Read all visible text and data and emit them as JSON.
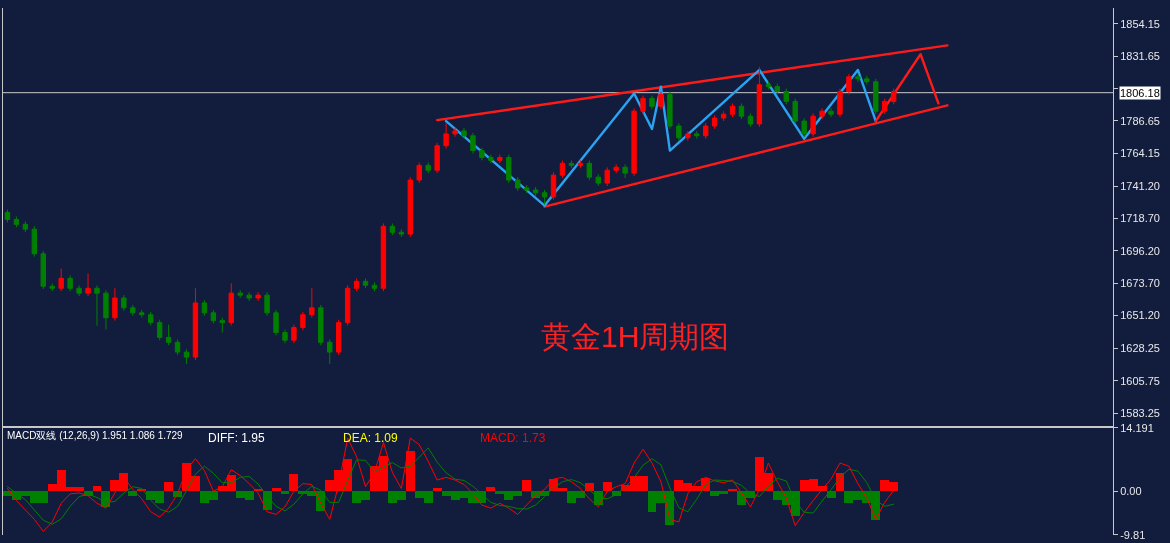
{
  "chart_data": [
    {
      "type": "candlestick",
      "title": "黄金1H周期图",
      "categories": [
        null,
        null,
        null,
        null,
        null,
        null,
        null,
        null,
        null,
        null,
        null,
        null,
        null,
        null,
        null,
        null,
        null,
        null,
        null,
        null,
        null,
        null,
        null,
        null,
        null,
        null,
        null,
        null,
        null,
        null,
        null,
        null,
        null,
        null,
        null,
        null,
        null,
        null,
        null,
        null,
        null,
        null,
        null,
        null,
        null,
        null,
        null,
        null,
        null,
        null,
        null,
        null,
        null,
        null,
        null,
        null,
        null,
        null,
        null,
        null,
        null,
        null,
        null,
        null,
        null,
        null,
        null,
        null,
        null,
        null,
        null,
        null,
        null,
        null,
        null,
        null,
        null,
        null,
        null,
        null,
        null,
        null,
        null,
        null,
        null,
        null,
        null,
        null,
        null,
        null,
        null,
        null,
        null,
        null,
        null,
        null,
        null,
        null,
        null,
        null,
        null,
        null,
        null,
        null,
        null,
        null,
        null,
        null,
        null,
        null,
        null,
        null,
        null,
        null,
        null,
        null,
        null,
        null,
        null,
        null,
        null,
        null,
        null,
        null
      ],
      "ohlc": [
        [
          1722.8,
          1724.8,
          1716.0,
          1718.0
        ],
        [
          1718.0,
          1720.0,
          1712.6,
          1714.6
        ],
        [
          1714.6,
          1716.6,
          1709.2,
          1711.2
        ],
        [
          1711.2,
          1713.2,
          1692.1,
          1694.1
        ],
        [
          1694.1,
          1696.1,
          1669.5,
          1671.5
        ],
        [
          1671.5,
          1673.5,
          1668.1,
          1670.1
        ],
        [
          1670.1,
          1683.8,
          1668.1,
          1677.0
        ],
        [
          1677.0,
          1679.0,
          1668.1,
          1670.1
        ],
        [
          1670.1,
          1672.1,
          1664.7,
          1666.7
        ],
        [
          1666.7,
          1680.4,
          1664.7,
          1670.1
        ],
        [
          1670.1,
          1672.1,
          1644.1,
          1666.7
        ],
        [
          1666.7,
          1668.7,
          1641.4,
          1649.6
        ],
        [
          1649.6,
          1670.1,
          1647.6,
          1663.3
        ],
        [
          1663.3,
          1665.3,
          1654.5,
          1656.5
        ],
        [
          1656.5,
          1658.5,
          1651.0,
          1653.0
        ],
        [
          1653.0,
          1655.0,
          1649.7,
          1651.7
        ],
        [
          1651.7,
          1653.7,
          1644.2,
          1646.2
        ],
        [
          1646.2,
          1648.2,
          1633.9,
          1635.9
        ],
        [
          1635.9,
          1644.8,
          1630.5,
          1632.5
        ],
        [
          1632.5,
          1634.5,
          1623.7,
          1625.7
        ],
        [
          1625.7,
          1627.7,
          1617.5,
          1622.2
        ],
        [
          1622.2,
          1670.1,
          1620.2,
          1659.9
        ],
        [
          1659.9,
          1661.9,
          1651.0,
          1653.0
        ],
        [
          1653.0,
          1655.0,
          1645.6,
          1647.6
        ],
        [
          1647.6,
          1649.6,
          1639.3,
          1646.2
        ],
        [
          1646.2,
          1673.6,
          1644.2,
          1666.7
        ],
        [
          1666.7,
          1668.7,
          1663.3,
          1665.3
        ],
        [
          1665.3,
          1667.3,
          1661.3,
          1663.3
        ],
        [
          1663.3,
          1667.3,
          1661.3,
          1665.3
        ],
        [
          1665.3,
          1667.3,
          1651.0,
          1653.0
        ],
        [
          1653.0,
          1655.0,
          1637.3,
          1639.3
        ],
        [
          1639.3,
          1641.3,
          1631.9,
          1633.9
        ],
        [
          1633.9,
          1644.8,
          1631.9,
          1642.8
        ],
        [
          1642.8,
          1653.7,
          1640.8,
          1651.7
        ],
        [
          1651.7,
          1670.1,
          1649.7,
          1656.5
        ],
        [
          1656.5,
          1658.5,
          1630.5,
          1632.5
        ],
        [
          1632.5,
          1634.5,
          1617.5,
          1625.7
        ],
        [
          1625.7,
          1648.2,
          1623.7,
          1646.2
        ],
        [
          1646.2,
          1672.1,
          1644.2,
          1670.1
        ],
        [
          1670.1,
          1676.9,
          1668.1,
          1674.9
        ],
        [
          1674.9,
          1676.9,
          1670.2,
          1672.2
        ],
        [
          1672.2,
          1674.2,
          1668.1,
          1670.1
        ],
        [
          1670.1,
          1715.2,
          1668.1,
          1713.2
        ],
        [
          1713.2,
          1715.2,
          1707.1,
          1709.1
        ],
        [
          1709.1,
          1711.1,
          1705.8,
          1707.8
        ],
        [
          1707.8,
          1747.4,
          1705.8,
          1745.4
        ],
        [
          1745.4,
          1757.6,
          1743.4,
          1755.6
        ],
        [
          1755.6,
          1757.6,
          1750.2,
          1752.2
        ],
        [
          1752.2,
          1771.3,
          1750.2,
          1769.3
        ],
        [
          1769.3,
          1785.1,
          1767.3,
          1777.5
        ],
        [
          1777.5,
          1781.6,
          1775.5,
          1779.6
        ],
        [
          1779.6,
          1781.6,
          1774.2,
          1776.2
        ],
        [
          1776.2,
          1778.2,
          1763.9,
          1765.9
        ],
        [
          1765.9,
          1767.9,
          1759.1,
          1761.1
        ],
        [
          1761.1,
          1763.1,
          1757.1,
          1759.1
        ],
        [
          1759.1,
          1763.1,
          1757.1,
          1761.1
        ],
        [
          1761.1,
          1763.1,
          1743.4,
          1745.4
        ],
        [
          1745.4,
          1747.4,
          1737.9,
          1739.9
        ],
        [
          1739.9,
          1741.9,
          1736.5,
          1738.5
        ],
        [
          1738.5,
          1740.5,
          1734.5,
          1736.5
        ],
        [
          1736.5,
          1738.5,
          1728.3,
          1733.7
        ],
        [
          1733.7,
          1750.8,
          1731.7,
          1748.8
        ],
        [
          1748.8,
          1759.0,
          1746.8,
          1757.0
        ],
        [
          1757.0,
          1759.0,
          1753.6,
          1755.6
        ],
        [
          1755.6,
          1759.0,
          1753.6,
          1757.0
        ],
        [
          1757.0,
          1759.0,
          1745.4,
          1747.4
        ],
        [
          1747.4,
          1749.4,
          1741.3,
          1743.3
        ],
        [
          1743.3,
          1754.2,
          1741.3,
          1752.2
        ],
        [
          1752.2,
          1756.3,
          1750.2,
          1754.3
        ],
        [
          1754.3,
          1756.3,
          1746.8,
          1750.2
        ],
        [
          1750.2,
          1795.3,
          1748.2,
          1793.3
        ],
        [
          1793.3,
          1804.2,
          1791.3,
          1802.2
        ],
        [
          1802.2,
          1804.2,
          1794.7,
          1796.7
        ],
        [
          1796.7,
          1806.9,
          1794.7,
          1804.9
        ],
        [
          1804.9,
          1806.9,
          1781.0,
          1783.0
        ],
        [
          1783.0,
          1785.0,
          1772.8,
          1774.8
        ],
        [
          1774.8,
          1779.5,
          1772.8,
          1777.5
        ],
        [
          1777.5,
          1779.5,
          1774.2,
          1776.2
        ],
        [
          1776.2,
          1785.0,
          1774.2,
          1783.0
        ],
        [
          1783.0,
          1790.5,
          1781.0,
          1788.5
        ],
        [
          1788.5,
          1793.2,
          1786.5,
          1791.2
        ],
        [
          1791.2,
          1798.7,
          1789.2,
          1796.7
        ],
        [
          1796.7,
          1798.7,
          1787.8,
          1789.8
        ],
        [
          1789.8,
          1791.8,
          1782.4,
          1784.4
        ],
        [
          1784.4,
          1824.1,
          1782.4,
          1811.7
        ],
        [
          1811.7,
          1813.7,
          1808.4,
          1810.4
        ],
        [
          1810.4,
          1812.4,
          1805.0,
          1807.0
        ],
        [
          1807.0,
          1809.0,
          1798.1,
          1800.1
        ],
        [
          1800.1,
          1802.1,
          1784.4,
          1786.4
        ],
        [
          1786.4,
          1788.4,
          1775.5,
          1777.5
        ],
        [
          1777.5,
          1791.8,
          1775.5,
          1789.8
        ],
        [
          1789.8,
          1795.3,
          1787.8,
          1793.3
        ],
        [
          1793.3,
          1795.3,
          1789.2,
          1791.2
        ],
        [
          1791.2,
          1809.0,
          1789.2,
          1807.0
        ],
        [
          1807.0,
          1819.2,
          1805.0,
          1817.2
        ],
        [
          1817.2,
          1819.2,
          1813.8,
          1815.8
        ],
        [
          1815.8,
          1817.8,
          1811.8,
          1813.8
        ],
        [
          1813.8,
          1815.8,
          1791.3,
          1793.3
        ],
        [
          1793.3,
          1802.1,
          1791.3,
          1800.1
        ],
        [
          1800.1,
          1809.0,
          1798.1,
          1807.0
        ],
        null,
        null,
        null,
        null,
        null,
        null,
        null,
        null,
        null,
        null,
        null,
        null,
        null,
        null,
        null,
        null,
        null,
        null,
        null,
        null,
        null,
        null,
        null,
        null
      ],
      "colors": [
        "#008000",
        "#008000",
        "#008000",
        "#008000",
        "#008000",
        "#008000",
        "#ff0000",
        "#008000",
        "#008000",
        "#ff0000",
        "#008000",
        "#008000",
        "#ff0000",
        "#008000",
        "#008000",
        "#008000",
        "#008000",
        "#008000",
        "#008000",
        "#008000",
        "#008000",
        "#ff0000",
        "#008000",
        "#008000",
        "#008000",
        "#ff0000",
        "#008000",
        "#008000",
        "#ff0000",
        "#008000",
        "#008000",
        "#008000",
        "#ff0000",
        "#ff0000",
        "#ff0000",
        "#008000",
        "#008000",
        "#ff0000",
        "#ff0000",
        "#ff0000",
        "#008000",
        "#008000",
        "#ff0000",
        "#008000",
        "#008000",
        "#ff0000",
        "#ff0000",
        "#008000",
        "#ff0000",
        "#ff0000",
        "#ff0000",
        "#008000",
        "#008000",
        "#008000",
        "#008000",
        "#ff0000",
        "#008000",
        "#008000",
        "#008000",
        "#008000",
        "#008000",
        "#ff0000",
        "#ff0000",
        "#008000",
        "#ff0000",
        "#008000",
        "#008000",
        "#ff0000",
        "#ff0000",
        "#008000",
        "#ff0000",
        "#ff0000",
        "#008000",
        "#ff0000",
        "#008000",
        "#008000",
        "#ff0000",
        "#008000",
        "#ff0000",
        "#ff0000",
        "#ff0000",
        "#ff0000",
        "#008000",
        "#008000",
        "#ff0000",
        "#008000",
        "#008000",
        "#008000",
        "#008000",
        "#008000",
        "#ff0000",
        "#ff0000",
        "#008000",
        "#ff0000",
        "#ff0000",
        "#008000",
        "#008000",
        "#008000",
        "#ff0000",
        "#ff0000",
        null,
        null,
        null,
        null,
        null,
        null,
        null,
        null,
        null,
        null,
        null,
        null,
        null,
        null,
        null,
        null,
        null,
        null,
        null,
        null,
        null,
        null,
        null,
        null
      ],
      "series": [
        {
          "type": "line",
          "color": "#ff1a1a",
          "values": [
            null,
            null,
            null,
            null,
            null,
            null,
            null,
            null,
            null,
            null,
            null,
            null,
            null,
            null,
            null,
            null,
            null,
            null,
            null,
            null,
            null,
            null,
            null,
            null,
            null,
            null,
            null,
            null,
            null,
            null,
            null,
            null,
            null,
            null,
            null,
            null,
            null,
            null,
            null,
            null,
            null,
            null,
            null,
            null,
            null,
            null,
            null,
            null,
            1787.1,
            null,
            null,
            null,
            null,
            null,
            null,
            null,
            null,
            null,
            null,
            null,
            null,
            null,
            null,
            null,
            null,
            null,
            null,
            null,
            null,
            null,
            null,
            null,
            null,
            null,
            null,
            null,
            null,
            null,
            null,
            null,
            null,
            null,
            null,
            null,
            null,
            null,
            null,
            null,
            null,
            null,
            null,
            null,
            null,
            null,
            null,
            null,
            null,
            null,
            null,
            null,
            null,
            null,
            null,
            null,
            null,
            1839.1,
            null,
            null,
            null,
            null,
            null,
            null,
            null,
            null,
            null,
            null,
            null,
            null,
            null,
            null,
            null,
            null,
            null,
            null
          ]
        },
        {
          "type": "line",
          "color": "#ff1a1a",
          "values": [
            null,
            null,
            null,
            null,
            null,
            null,
            null,
            null,
            null,
            null,
            null,
            null,
            null,
            null,
            null,
            null,
            null,
            null,
            null,
            null,
            null,
            null,
            null,
            null,
            null,
            null,
            null,
            null,
            null,
            null,
            null,
            null,
            null,
            null,
            null,
            null,
            null,
            null,
            null,
            null,
            null,
            null,
            null,
            null,
            null,
            null,
            null,
            null,
            null,
            null,
            null,
            null,
            null,
            null,
            null,
            null,
            null,
            null,
            null,
            null,
            1726.9,
            null,
            null,
            null,
            null,
            null,
            null,
            null,
            null,
            null,
            null,
            null,
            null,
            null,
            null,
            null,
            null,
            null,
            null,
            null,
            null,
            null,
            null,
            null,
            null,
            null,
            null,
            null,
            null,
            null,
            null,
            null,
            null,
            null,
            null,
            null,
            null,
            null,
            null,
            null,
            null,
            null,
            null,
            null,
            null,
            1797.4,
            null,
            null,
            null,
            null,
            null,
            null,
            null,
            null,
            null,
            null,
            null,
            null,
            null,
            null,
            null,
            null,
            null,
            null
          ]
        },
        {
          "type": "line",
          "color": "#2aa4f2",
          "values": [
            null,
            null,
            null,
            null,
            null,
            null,
            null,
            null,
            null,
            null,
            null,
            null,
            null,
            null,
            null,
            null,
            null,
            null,
            null,
            null,
            null,
            null,
            null,
            null,
            null,
            null,
            null,
            null,
            null,
            null,
            null,
            null,
            null,
            null,
            null,
            null,
            null,
            null,
            null,
            null,
            null,
            null,
            null,
            null,
            null,
            null,
            null,
            null,
            null,
            1786.4,
            null,
            null,
            null,
            null,
            null,
            null,
            null,
            null,
            null,
            null,
            1727.6,
            null,
            null,
            null,
            null,
            null,
            null,
            null,
            null,
            null,
            1805.6,
            null,
            1780.9,
            1810.4,
            1765.9,
            null,
            null,
            null,
            null,
            null,
            null,
            null,
            null,
            null,
            1822.0,
            null,
            null,
            null,
            null,
            1774.1,
            null,
            null,
            null,
            null,
            null,
            1822.0,
            null,
            1786.4,
            null,
            null,
            null,
            null,
            null,
            null,
            null,
            null,
            null,
            null,
            null,
            null,
            null,
            null,
            null,
            null,
            null,
            null,
            null,
            null,
            null,
            null,
            null,
            null,
            null,
            null
          ]
        },
        {
          "type": "line",
          "color": "#ff1a1a",
          "values": [
            null,
            null,
            null,
            null,
            null,
            null,
            null,
            null,
            null,
            null,
            null,
            null,
            null,
            null,
            null,
            null,
            null,
            null,
            null,
            null,
            null,
            null,
            null,
            null,
            null,
            null,
            null,
            null,
            null,
            null,
            null,
            null,
            null,
            null,
            null,
            null,
            null,
            null,
            null,
            null,
            null,
            null,
            null,
            null,
            null,
            null,
            null,
            null,
            null,
            null,
            null,
            null,
            null,
            null,
            null,
            null,
            null,
            null,
            null,
            null,
            null,
            null,
            null,
            null,
            null,
            null,
            null,
            null,
            null,
            null,
            null,
            null,
            null,
            null,
            null,
            null,
            null,
            null,
            null,
            null,
            null,
            null,
            null,
            null,
            null,
            null,
            null,
            null,
            null,
            null,
            null,
            null,
            null,
            null,
            null,
            null,
            null,
            1786.4,
            null,
            null,
            null,
            null,
            1832.9,
            null,
            1798.7,
            null,
            null,
            null,
            null,
            null,
            null,
            null,
            null,
            null,
            null,
            null,
            null,
            null,
            null,
            null,
            null,
            null,
            null,
            null
          ]
        }
      ],
      "ylim": [
        1574.4,
        1865.1
      ],
      "yticks": [
        1854.15,
        1831.65,
        {
          "value": 1809.15,
          "label": null
        },
        1786.65,
        1764.15,
        {
          "value": 1741.2,
          "label": "1741.20"
        },
        {
          "value": 1718.7,
          "label": "1718.70"
        },
        {
          "value": 1696.2,
          "label": "1696.20"
        },
        {
          "value": 1673.7,
          "label": "1673.70"
        },
        {
          "value": 1651.2,
          "label": "1651.20"
        },
        1628.25,
        1605.75,
        1583.25
      ],
      "ref_lines": [
        {
          "axis": "y",
          "value": 1806.18,
          "label": "1806.18",
          "color": "#c8c8c8"
        }
      ],
      "tick_labels": "y"
    },
    {
      "type": "bar",
      "title": "MACD双线 (12,26,9) 1.951 1.086 1.729",
      "annotations": [
        "DIFF: 1.95",
        "DEA: 1.09",
        "MACD: 1.73"
      ],
      "categories": [
        null,
        null,
        null,
        null,
        null,
        null,
        null,
        null,
        null,
        null,
        null,
        null,
        null,
        null,
        null,
        null,
        null,
        null,
        null,
        null,
        null,
        null,
        null,
        null,
        null,
        null,
        null,
        null,
        null,
        null,
        null,
        null,
        null,
        null,
        null,
        null,
        null,
        null,
        null,
        null,
        null,
        null,
        null,
        null,
        null,
        null,
        null,
        null,
        null,
        null,
        null,
        null,
        null,
        null,
        null,
        null,
        null,
        null,
        null,
        null,
        null,
        null,
        null,
        null,
        null,
        null,
        null,
        null,
        null,
        null,
        null,
        null,
        null,
        null,
        null,
        null,
        null,
        null,
        null,
        null,
        null,
        null,
        null,
        null,
        null,
        null,
        null,
        null,
        null,
        null,
        null,
        null,
        null,
        null,
        null,
        null,
        null,
        null,
        null,
        null,
        null,
        null,
        null,
        null,
        null,
        null,
        null,
        null,
        null,
        null,
        null,
        null,
        null,
        null,
        null,
        null,
        null,
        null,
        null,
        null,
        null,
        null,
        null,
        null
      ],
      "series": [
        {
          "colors": [
            "#008000",
            "#008000",
            "#008000",
            "#008000",
            "#008000",
            "#ff0000",
            "#ff0000",
            "#ff0000",
            "#ff0000",
            "#008000",
            "#ff0000",
            "#008000",
            "#ff0000",
            "#ff0000",
            "#008000",
            "#ff0000",
            "#008000",
            "#008000",
            "#ff0000",
            "#008000",
            "#ff0000",
            "#ff0000",
            "#008000",
            "#008000",
            "#ff0000",
            "#ff0000",
            "#008000",
            "#008000",
            "#ff0000",
            "#008000",
            "#ff0000",
            "#008000",
            "#ff0000",
            "#008000",
            "#008000",
            "#008000",
            "#ff0000",
            "#ff0000",
            "#ff0000",
            "#008000",
            "#008000",
            "#ff0000",
            "#ff0000",
            "#008000",
            "#008000",
            "#ff0000",
            "#008000",
            "#008000",
            "#ff0000",
            "#008000",
            "#008000",
            "#008000",
            "#008000",
            "#008000",
            "#ff0000",
            "#008000",
            "#008000",
            "#008000",
            "#ff0000",
            "#008000",
            "#008000",
            "#ff0000",
            "#ff0000",
            "#008000",
            "#008000",
            "#ff0000",
            "#008000",
            "#ff0000",
            "#008000",
            "#ff0000",
            "#ff0000",
            "#ff0000",
            "#008000",
            "#008000",
            "#008000",
            "#ff0000",
            "#ff0000",
            "#ff0000",
            "#ff0000",
            "#008000",
            "#008000",
            "#ff0000",
            "#008000",
            "#008000",
            "#ff0000",
            "#ff0000",
            "#008000",
            "#008000",
            "#008000",
            "#ff0000",
            "#ff0000",
            "#ff0000",
            "#008000",
            "#ff0000",
            "#008000",
            "#008000",
            "#008000",
            "#008000",
            "#ff0000",
            "#ff0000",
            null,
            null,
            null,
            null,
            null,
            null,
            null,
            null,
            null,
            null,
            null,
            null,
            null,
            null,
            null,
            null,
            null,
            null,
            null,
            null,
            null,
            null,
            null,
            null
          ],
          "values": [
            -1,
            -2,
            -1,
            -2.5,
            -2.5,
            1.7,
            4.8,
            1.0,
            1.0,
            -1.0,
            1.3,
            -3.5,
            2.5,
            4.2,
            -1.0,
            0.5,
            -2.0,
            -2.5,
            2.1,
            -1.2,
            6.3,
            3.5,
            -2.5,
            -2.0,
            1.3,
            3.6,
            -1.5,
            -2.0,
            0.5,
            -4.2,
            0.8,
            -0.5,
            3.8,
            -0.5,
            -1.0,
            -4.5,
            2.5,
            4.8,
            7.3,
            -2.5,
            -2.0,
            5.6,
            8.0,
            -2.5,
            -2.0,
            9.0,
            -1.5,
            -2.5,
            0.8,
            -1.0,
            -2.0,
            -1.5,
            -2.5,
            -2.5,
            1.0,
            -0.5,
            -2.0,
            -1.0,
            2.5,
            -1.5,
            -1.0,
            2.7,
            0.8,
            -2.5,
            -1.5,
            1.8,
            -3.0,
            2.2,
            -1.0,
            1.5,
            3.4,
            3.4,
            -4.7,
            -2.5,
            -7.6,
            2.5,
            1.8,
            1.2,
            3.0,
            -1.0,
            -0.5,
            0.5,
            -3.0,
            -1.5,
            7.7,
            4.2,
            -2.0,
            -3.0,
            -5.6,
            2.5,
            2.8,
            1.2,
            -1.5,
            4.2,
            -2.5,
            -2.0,
            -2.5,
            -6.3,
            2.5,
            2.0,
            null,
            null,
            null,
            null,
            null,
            null,
            null,
            null,
            null,
            null,
            null,
            null,
            null,
            null,
            null,
            null,
            null,
            null,
            null,
            null,
            null,
            null,
            null,
            null
          ]
        },
        {
          "type": "line",
          "color": "#ff0000",
          "values": [
            0.6,
            -2.1,
            -4.2,
            -6.3,
            -9.0,
            -6.9,
            -2.7,
            -0.6,
            -0.4,
            -1.0,
            -2.7,
            -3.8,
            -0.4,
            3.1,
            0.4,
            -1.7,
            -4.6,
            -5.8,
            -3.8,
            -0.6,
            4.8,
            7.3,
            4.6,
            0,
            1.0,
            4.8,
            3.5,
            1.7,
            -0.4,
            -4.6,
            -5.2,
            -3.5,
            0,
            1.7,
            1.5,
            -2.7,
            -6.3,
            1.5,
            11.9,
            7.7,
            1.0,
            4.2,
            10.9,
            4.2,
            0.6,
            11.9,
            10.4,
            6.7,
            2.5,
            3.1,
            2.5,
            1.5,
            -0.6,
            -3.1,
            -3.8,
            -2.7,
            -3.8,
            -5.2,
            -3.1,
            -1.0,
            0.4,
            2.7,
            3.1,
            2.1,
            0.6,
            -1.7,
            -3.5,
            0,
            1.0,
            1.7,
            6.3,
            9.4,
            6.3,
            2.1,
            -6.3,
            -6.9,
            -0.6,
            2.1,
            3.1,
            2.3,
            1.9,
            2.5,
            -0.4,
            -3.5,
            0.4,
            6.3,
            2.1,
            -1.5,
            -7.7,
            -4.8,
            -2.1,
            0.4,
            2.7,
            6.3,
            5.6,
            1.7,
            -1.5,
            -6.3,
            -2.5,
            0.2,
            null,
            null,
            null,
            null,
            null,
            null,
            null,
            null,
            null,
            null,
            null,
            null,
            null,
            null,
            null,
            null,
            null,
            null,
            null,
            null,
            null,
            null,
            null,
            null
          ]
        },
        {
          "type": "line",
          "color": "#008000",
          "values": [
            1.0,
            -0.5,
            -1.9,
            -4.2,
            -6.5,
            -7.4,
            -6.2,
            -3.4,
            -1.2,
            -0.7,
            -1.4,
            -2.5,
            -2.3,
            -0.4,
            1.0,
            0.6,
            -2.0,
            -4.0,
            -4.7,
            -3.4,
            0.1,
            3.8,
            5.6,
            4.0,
            1.9,
            1.9,
            3.1,
            3.3,
            1.6,
            -1.1,
            -3.4,
            -4.4,
            -2.9,
            -0.6,
            1.1,
            0.2,
            -2.5,
            -2.5,
            2.4,
            7.0,
            6.9,
            4.3,
            5.4,
            6.4,
            5.2,
            5.6,
            7.6,
            9.7,
            6.5,
            4.1,
            2.7,
            2.4,
            1.1,
            -0.7,
            -2.5,
            -3.2,
            -3.4,
            -3.9,
            -4.0,
            -3.1,
            -1.2,
            0.7,
            2.1,
            2.6,
            1.9,
            0.3,
            -1.5,
            -1.7,
            -0.8,
            0.9,
            3.0,
            5.8,
            7.3,
            5.9,
            0.7,
            -3.7,
            -4.6,
            -1.8,
            1.5,
            2.5,
            2.4,
            2.2,
            1.3,
            -0.5,
            -1.2,
            1.1,
            2.9,
            2.3,
            -2.4,
            -4.7,
            -4.9,
            -2.2,
            0.3,
            3.1,
            4.9,
            4.5,
            1.9,
            -2.0,
            -3.4,
            -2.9,
            null,
            null,
            null,
            null,
            null,
            null,
            null,
            null,
            null,
            null,
            null,
            null,
            null,
            null,
            null,
            null,
            null,
            null,
            null,
            null,
            null,
            null,
            null,
            null
          ]
        }
      ],
      "ylim": [
        -9.81,
        14.191
      ],
      "yticks": [
        14.191,
        {
          "value": 0,
          "label": "0.00"
        },
        -9.81
      ],
      "tick_labels": "y"
    }
  ]
}
